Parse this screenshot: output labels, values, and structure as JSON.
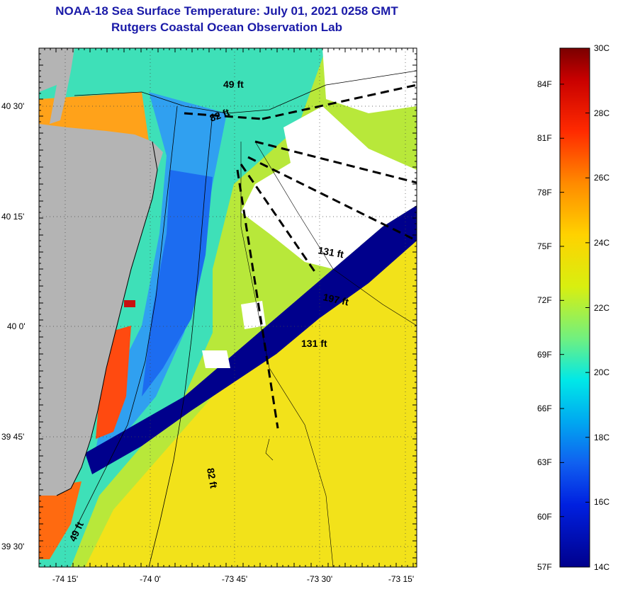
{
  "title": {
    "line1": "NOAA-18 Sea Surface Temperature:  July 01, 2021 0258 GMT",
    "line2": "Rutgers Coastal Ocean Observation Lab"
  },
  "map": {
    "lat_labels": [
      "40 30'",
      "40 15'",
      "40 0'",
      "39 45'",
      "39 30'"
    ],
    "lon_labels": [
      "-74 15'",
      "-74 0'",
      "-73 45'",
      "-73 30'",
      "-73 15'"
    ],
    "contour_labels": [
      "49 ft",
      "82 ft",
      "131 ft",
      "197 ft",
      "131 ft",
      "82 ft",
      "49 ft"
    ],
    "colors": {
      "land": "#b4b4b4",
      "no_data": "#ffffff",
      "warm": "#ffdd00",
      "cold": "#00008c"
    }
  },
  "colorbar": {
    "fahrenheit_labels": [
      "84F",
      "81F",
      "78F",
      "75F",
      "72F",
      "69F",
      "66F",
      "63F",
      "60F",
      "57F"
    ],
    "celsius_labels": [
      "30C",
      "28C",
      "26C",
      "24C",
      "22C",
      "20C",
      "18C",
      "16C",
      "14C"
    ],
    "range_c": [
      14,
      30
    ],
    "range_f": [
      57,
      86
    ]
  }
}
